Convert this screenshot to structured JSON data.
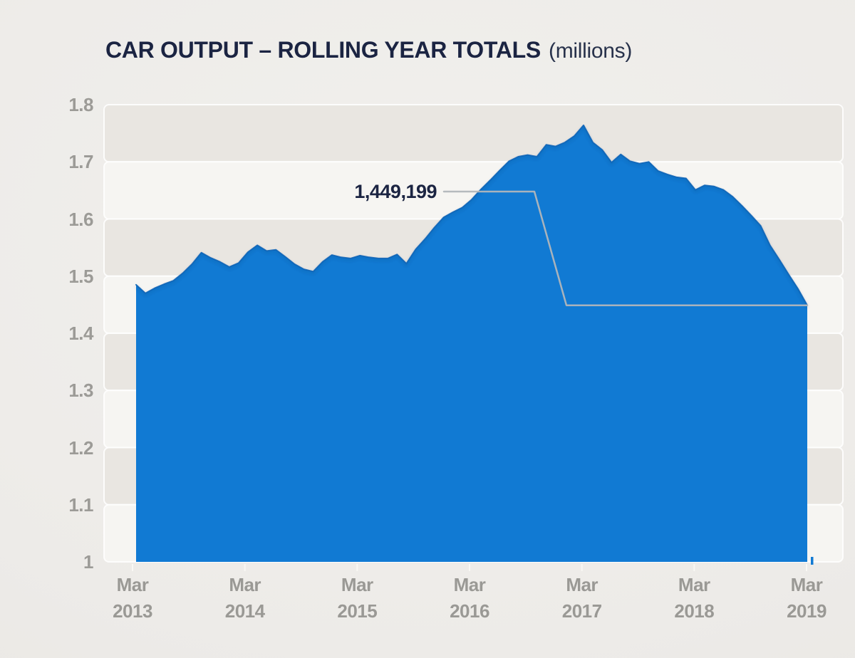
{
  "chart_data": {
    "type": "area",
    "title": "CAR OUTPUT – ROLLING YEAR TOTALS",
    "unit_label": "(millions)",
    "x_frequency": "monthly",
    "x_range": [
      "Mar 2013",
      "Mar 2019"
    ],
    "x_tick_labels": [
      {
        "month": "Mar",
        "year": "2013"
      },
      {
        "month": "Mar",
        "year": "2014"
      },
      {
        "month": "Mar",
        "year": "2015"
      },
      {
        "month": "Mar",
        "year": "2016"
      },
      {
        "month": "Mar",
        "year": "2017"
      },
      {
        "month": "Mar",
        "year": "2018"
      },
      {
        "month": "Mar",
        "year": "2019"
      }
    ],
    "ylim": [
      1.0,
      1.8
    ],
    "y_ticks": [
      "1.8",
      "1.7",
      "1.6",
      "1.5",
      "1.4",
      "1.3",
      "1.2",
      "1.1",
      "1"
    ],
    "values": [
      1.485,
      1.47,
      1.479,
      1.486,
      1.492,
      1.505,
      1.521,
      1.541,
      1.532,
      1.525,
      1.516,
      1.523,
      1.542,
      1.554,
      1.544,
      1.546,
      1.534,
      1.521,
      1.512,
      1.508,
      1.525,
      1.537,
      1.533,
      1.531,
      1.536,
      1.533,
      1.531,
      1.531,
      1.538,
      1.522,
      1.547,
      1.565,
      1.585,
      1.603,
      1.612,
      1.62,
      1.634,
      1.652,
      1.668,
      1.685,
      1.701,
      1.709,
      1.712,
      1.709,
      1.73,
      1.727,
      1.734,
      1.745,
      1.764,
      1.734,
      1.721,
      1.699,
      1.713,
      1.701,
      1.697,
      1.7,
      1.684,
      1.678,
      1.673,
      1.671,
      1.651,
      1.659,
      1.657,
      1.651,
      1.639,
      1.623,
      1.606,
      1.588,
      1.554,
      1.529,
      1.503,
      1.478,
      1.449
    ],
    "annotation": {
      "label": "1,449,199",
      "points_to": "Mar 2019",
      "value_millions": 1.449199
    },
    "grid": "alternating horizontal bands, white separators at each 0.1 gridline",
    "legend": false,
    "colors": {
      "area_fill": "#117AD3",
      "area_edge": "#0B63B6",
      "band_dark": "#E9E6E1",
      "band_light": "#F6F5F2",
      "band_separator": "rgba(255,255,255,0.85)",
      "title_text": "#1B2442",
      "axis_text": "#9C9B97",
      "callout_line": "#B2B6BA",
      "tick_mark": "#FAF9F5"
    }
  }
}
